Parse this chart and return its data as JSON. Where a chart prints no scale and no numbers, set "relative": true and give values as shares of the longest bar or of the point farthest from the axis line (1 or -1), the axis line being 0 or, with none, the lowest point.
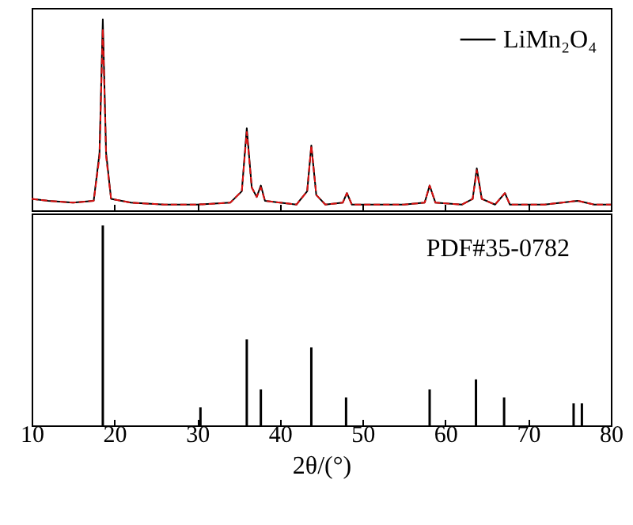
{
  "chart_data": [
    {
      "type": "line",
      "relative": true,
      "xlim": [
        10,
        80
      ],
      "xticks": [
        10,
        20,
        30,
        40,
        50,
        60,
        70,
        80
      ],
      "tick_labels": false,
      "legend": "top right",
      "x": [
        10,
        12,
        15,
        17.5,
        18.2,
        18.6,
        19.0,
        19.6,
        22,
        26,
        30,
        34,
        35.4,
        36.0,
        36.6,
        37.2,
        37.7,
        38.2,
        42,
        43.3,
        43.8,
        44.4,
        45.5,
        47.6,
        48.1,
        48.7,
        55,
        57.5,
        58.1,
        58.8,
        62,
        63.3,
        63.8,
        64.4,
        66,
        67.2,
        67.8,
        72,
        76,
        78,
        80
      ],
      "series": [
        {
          "name": "LiMn₂O₄",
          "color": "#000000",
          "values": [
            0.06,
            0.05,
            0.04,
            0.05,
            0.3,
            1.0,
            0.3,
            0.06,
            0.04,
            0.03,
            0.03,
            0.04,
            0.1,
            0.43,
            0.12,
            0.07,
            0.13,
            0.05,
            0.03,
            0.1,
            0.34,
            0.08,
            0.03,
            0.04,
            0.09,
            0.03,
            0.03,
            0.04,
            0.13,
            0.04,
            0.03,
            0.06,
            0.22,
            0.06,
            0.03,
            0.09,
            0.03,
            0.03,
            0.05,
            0.03,
            0.03
          ]
        },
        {
          "color": "#dd1111",
          "line_style": "dashed",
          "values": [
            0.06,
            0.05,
            0.04,
            0.05,
            0.28,
            0.95,
            0.28,
            0.06,
            0.04,
            0.03,
            0.03,
            0.04,
            0.1,
            0.41,
            0.12,
            0.07,
            0.12,
            0.05,
            0.03,
            0.1,
            0.34,
            0.08,
            0.03,
            0.04,
            0.09,
            0.03,
            0.03,
            0.04,
            0.13,
            0.04,
            0.03,
            0.06,
            0.21,
            0.06,
            0.03,
            0.09,
            0.03,
            0.03,
            0.05,
            0.03,
            0.03
          ]
        }
      ]
    },
    {
      "type": "bar",
      "relative": true,
      "xlim": [
        10,
        80
      ],
      "xticks": [
        10,
        20,
        30,
        40,
        50,
        60,
        70,
        80
      ],
      "tick_labels": "x",
      "xlabel": "2θ/(°)",
      "annotations": [
        "PDF#35-0782"
      ],
      "x": [
        18.6,
        30.4,
        36.0,
        37.7,
        43.8,
        48.0,
        58.1,
        63.7,
        67.1,
        75.5,
        76.5
      ],
      "series": [
        {
          "color": "#000000",
          "values": [
            1.0,
            0.09,
            0.43,
            0.18,
            0.39,
            0.14,
            0.18,
            0.23,
            0.14,
            0.11,
            0.11
          ]
        }
      ]
    }
  ]
}
